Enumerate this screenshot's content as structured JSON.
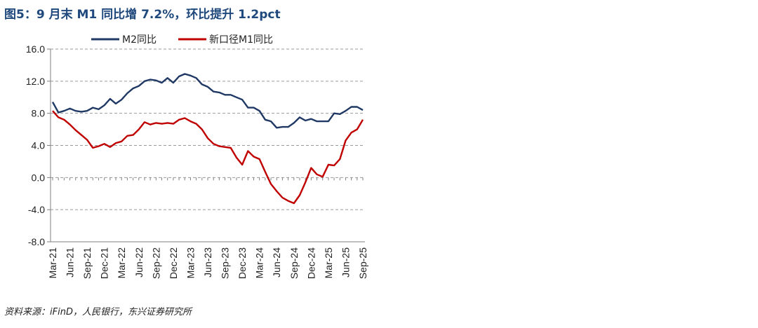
{
  "title": "图5：9 月末 M1 同比增 7.2%，环比提升 1.2pct",
  "source": "资料来源：iFinD，人民银行，东兴证券研究所",
  "chart_data": {
    "type": "line",
    "ylim": [
      -8.0,
      16.0
    ],
    "yticks": [
      "16.0",
      "12.0",
      "8.0",
      "4.0",
      "0.0",
      "-4.0",
      "-8.0"
    ],
    "ytick_values": [
      16,
      12,
      8,
      4,
      0,
      -4,
      -8
    ],
    "grid": true,
    "legend_position": "top-center",
    "x_tick_labels": [
      "Mar-21",
      "Jun-21",
      "Sep-21",
      "Dec-21",
      "Mar-22",
      "Jun-22",
      "Sep-22",
      "Dec-22",
      "Mar-23",
      "Jun-23",
      "Sep-23",
      "Dec-23",
      "Mar-24",
      "Jun-24",
      "Sep-24",
      "Dec-24",
      "Mar-25",
      "Jun-25",
      "Sep-25"
    ],
    "x": [
      "2021-03",
      "2021-04",
      "2021-05",
      "2021-06",
      "2021-07",
      "2021-08",
      "2021-09",
      "2021-10",
      "2021-11",
      "2021-12",
      "2022-01",
      "2022-02",
      "2022-03",
      "2022-04",
      "2022-05",
      "2022-06",
      "2022-07",
      "2022-08",
      "2022-09",
      "2022-10",
      "2022-11",
      "2022-12",
      "2023-01",
      "2023-02",
      "2023-03",
      "2023-04",
      "2023-05",
      "2023-06",
      "2023-07",
      "2023-08",
      "2023-09",
      "2023-10",
      "2023-11",
      "2023-12",
      "2024-01",
      "2024-02",
      "2024-03",
      "2024-04",
      "2024-05",
      "2024-06",
      "2024-07",
      "2024-08",
      "2024-09",
      "2024-10",
      "2024-11",
      "2024-12",
      "2025-01",
      "2025-02",
      "2025-03",
      "2025-04",
      "2025-05",
      "2025-06",
      "2025-07",
      "2025-08",
      "2025-09"
    ],
    "series": [
      {
        "name": "M2同比",
        "color": "#1f3864",
        "values": [
          9.4,
          8.1,
          8.3,
          8.6,
          8.3,
          8.2,
          8.3,
          8.7,
          8.5,
          9.0,
          9.8,
          9.2,
          9.7,
          10.5,
          11.1,
          11.4,
          12.0,
          12.2,
          12.1,
          11.8,
          12.4,
          11.8,
          12.6,
          12.9,
          12.7,
          12.4,
          11.6,
          11.3,
          10.7,
          10.6,
          10.3,
          10.3,
          10.0,
          9.7,
          8.7,
          8.7,
          8.3,
          7.2,
          7.0,
          6.2,
          6.3,
          6.3,
          6.8,
          7.5,
          7.1,
          7.3,
          7.0,
          7.0,
          7.0,
          8.0,
          7.9,
          8.3,
          8.8,
          8.8,
          8.4
        ]
      },
      {
        "name": "新口径M1同比",
        "color": "#c00000",
        "values": [
          8.3,
          7.5,
          7.2,
          6.6,
          5.9,
          5.3,
          4.7,
          3.7,
          3.9,
          4.2,
          3.8,
          4.3,
          4.5,
          5.2,
          5.3,
          6.0,
          6.9,
          6.6,
          6.8,
          6.7,
          6.8,
          6.7,
          7.2,
          7.4,
          7.0,
          6.7,
          6.0,
          4.9,
          4.2,
          3.9,
          3.8,
          3.7,
          2.5,
          1.6,
          3.3,
          2.6,
          2.3,
          0.7,
          -0.8,
          -1.7,
          -2.5,
          -2.9,
          -3.2,
          -2.2,
          -0.6,
          1.2,
          0.4,
          0.1,
          1.6,
          1.5,
          2.3,
          4.6,
          5.6,
          6.0,
          7.2
        ]
      }
    ]
  }
}
